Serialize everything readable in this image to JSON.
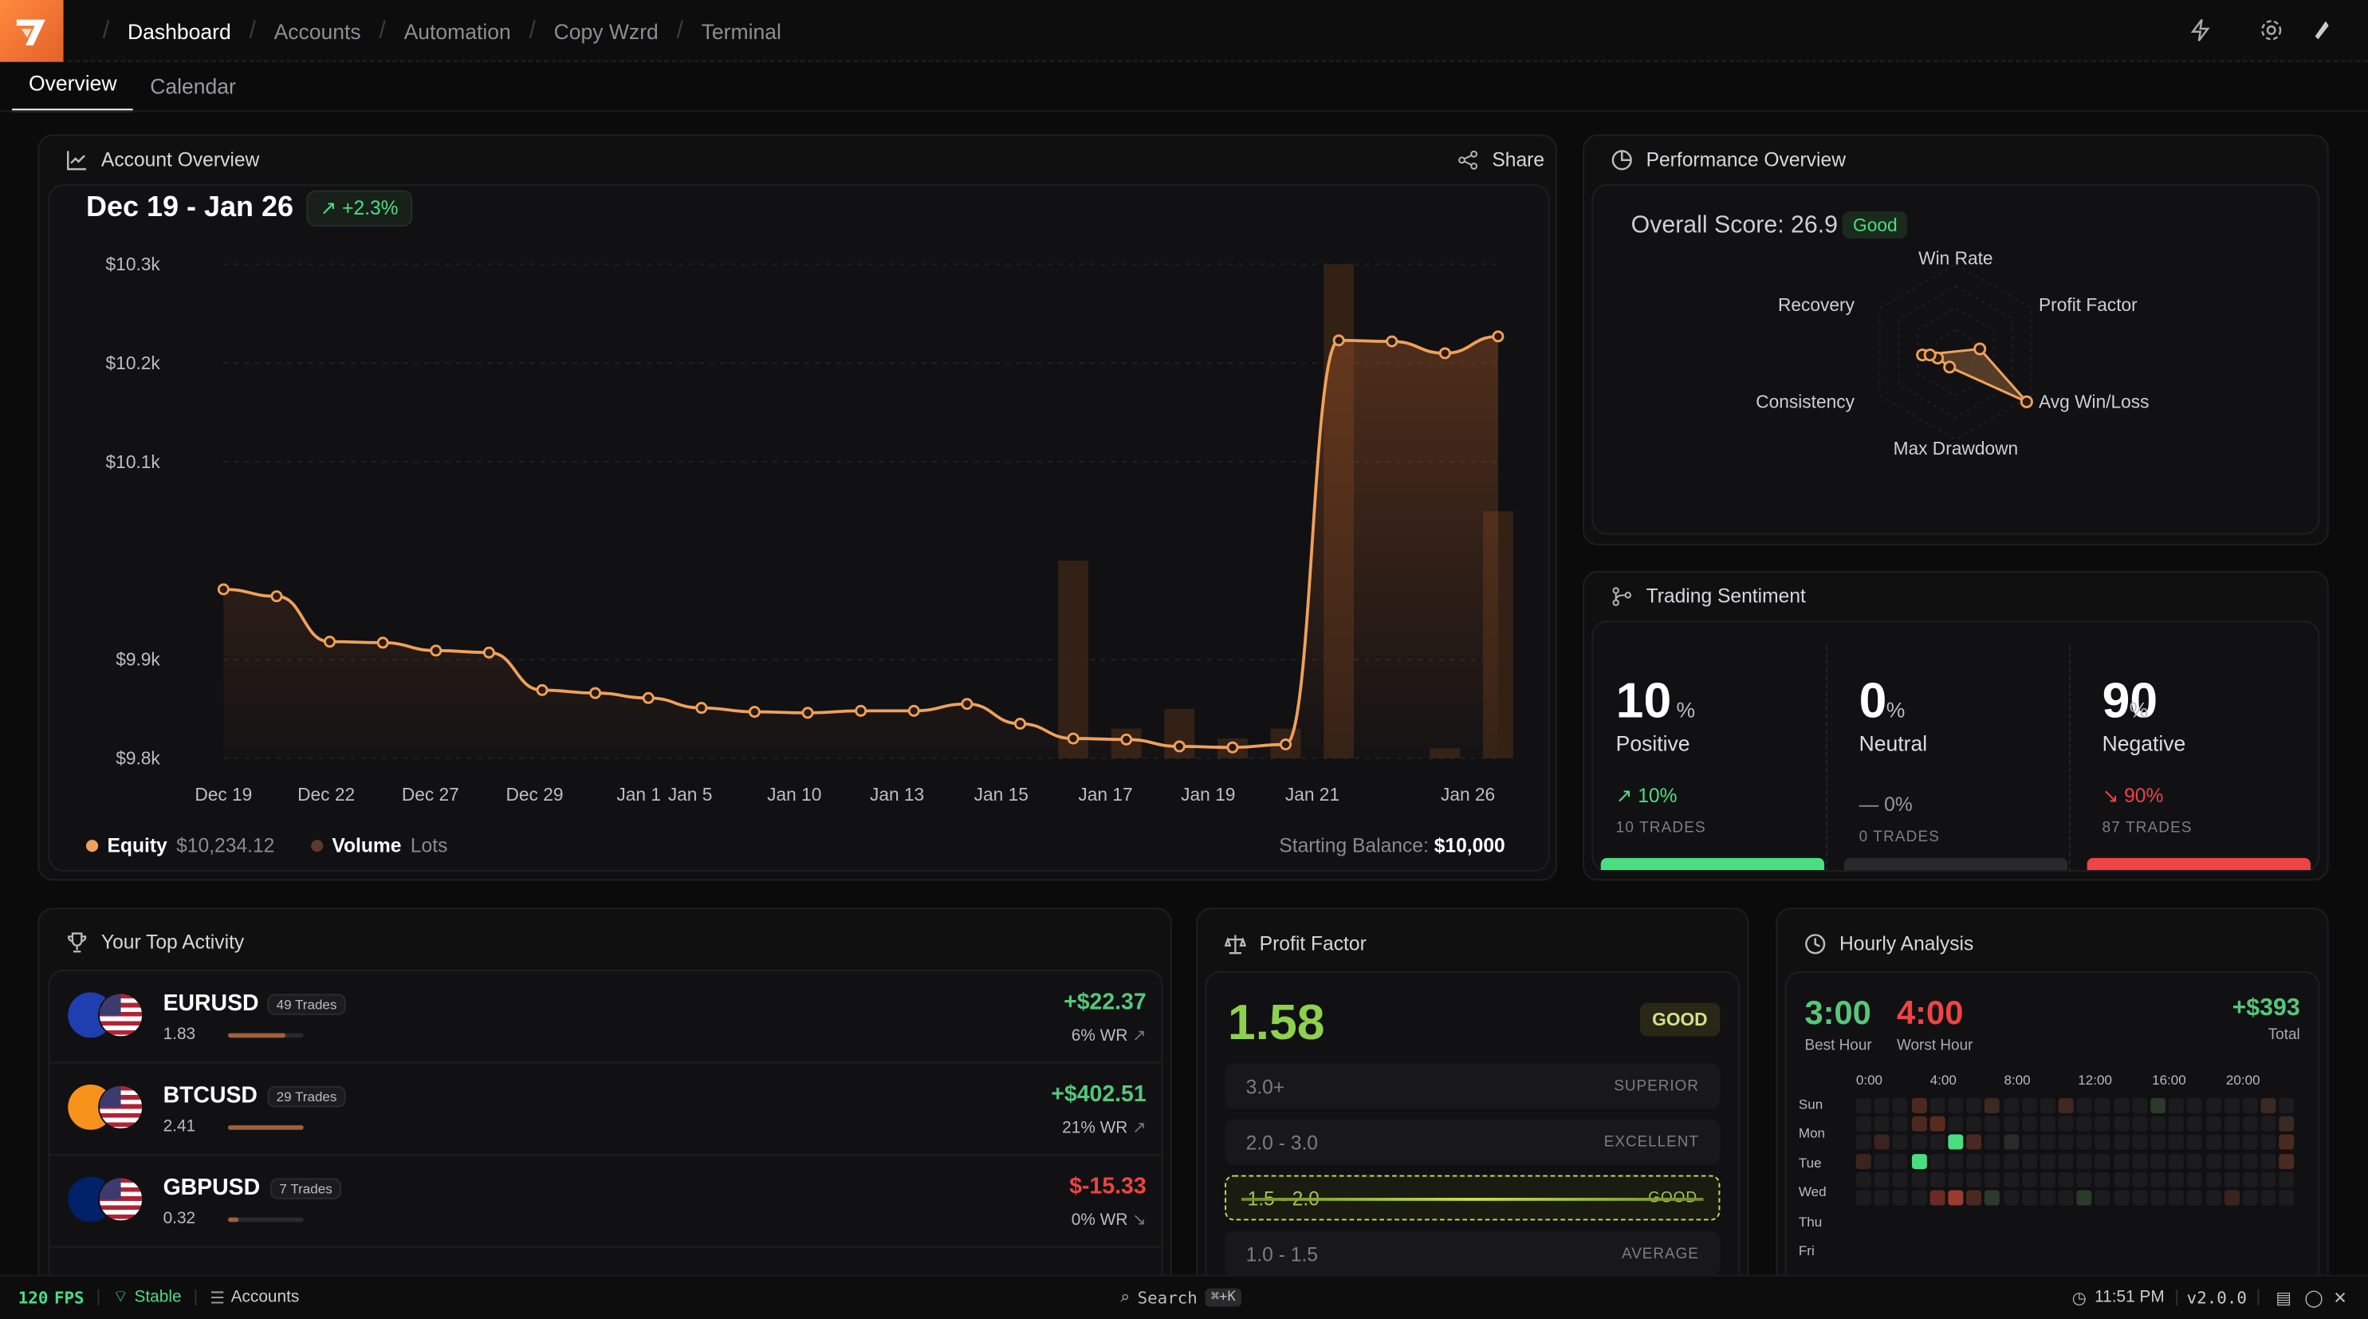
{
  "nav": {
    "crumbs": [
      "Dashboard",
      "Accounts",
      "Automation",
      "Copy Wzrd",
      "Terminal"
    ]
  },
  "tabs": [
    "Overview",
    "Calendar"
  ],
  "account_overview": {
    "title": "Account Overview",
    "share": "Share",
    "range": "Dec 19 - Jan 26",
    "change": "+2.3%",
    "legend": {
      "equity_label": "Equity",
      "equity_value": "$10,234.12",
      "volume_label": "Volume",
      "volume_unit": "Lots"
    },
    "starting_label": "Starting Balance:",
    "starting_value": "$10,000"
  },
  "chart_data": {
    "type": "line",
    "y_ticks": [
      "$10.3k",
      "$10.2k",
      "$10.1k",
      "$9.9k",
      "$9.8k"
    ],
    "x_ticks": [
      "Dec 19",
      "Dec 22",
      "Dec 27",
      "Dec 29",
      "Jan 1",
      "Jan 5",
      "Jan 10",
      "Jan 13",
      "Jan 15",
      "Jan 17",
      "Jan 19",
      "Jan 21",
      "Jan 26"
    ],
    "ylim": [
      9800,
      10300
    ],
    "series": [
      {
        "name": "Equity",
        "values": [
          9971,
          9964,
          9918,
          9917,
          9909,
          9907,
          9869,
          9866,
          9861,
          9851,
          9847,
          9846,
          9848,
          9848,
          9855,
          9835,
          9820,
          9819,
          9812,
          9811,
          9814,
          10223,
          10222,
          10210,
          10227
        ]
      },
      {
        "name": "Volume",
        "values": [
          0,
          0,
          0,
          0,
          0,
          0,
          0,
          0,
          0,
          0,
          0,
          0,
          0,
          0,
          0,
          0,
          0.4,
          0.06,
          0.1,
          0.04,
          0.06,
          1.0,
          0,
          0.02,
          0.5
        ]
      }
    ]
  },
  "perf": {
    "title": "Performance Overview",
    "score_label": "Overall Score: 26.9",
    "score_badge": "Good",
    "axes": [
      "Win Rate",
      "Profit Factor",
      "Avg Win/Loss",
      "Max Drawdown",
      "Consistency",
      "Recovery"
    ]
  },
  "sentiment": {
    "title": "Trading Sentiment",
    "items": [
      {
        "pct": "10",
        "unit": "%",
        "label": "Positive",
        "delta": "10%",
        "trades": "10 TRADES",
        "color": "#4ade80",
        "fill": 0.1
      },
      {
        "pct": "0",
        "unit": "%",
        "label": "Neutral",
        "delta": "0%",
        "trades": "0 TRADES",
        "color": "#777",
        "fill": 0
      },
      {
        "pct": "90",
        "unit": "%",
        "label": "Negative",
        "delta": "90%",
        "trades": "87 TRADES",
        "color": "#ef4444",
        "fill": 0.9
      }
    ]
  },
  "top_activity": {
    "title": "Your Top Activity",
    "rows": [
      {
        "sym": "EURUSD",
        "trades": "49 Trades",
        "pf": "1.83",
        "pnl": "+$22.37",
        "wr": "6% WR",
        "arrow": "↗",
        "pos": true,
        "pfbar": 0.75
      },
      {
        "sym": "BTCUSD",
        "trades": "29 Trades",
        "pf": "2.41",
        "pnl": "+$402.51",
        "wr": "21% WR",
        "arrow": "↗",
        "pos": true,
        "pfbar": 1.0
      },
      {
        "sym": "GBPUSD",
        "trades": "7 Trades",
        "pf": "0.32",
        "pnl": "$-15.33",
        "wr": "0% WR",
        "arrow": "↘",
        "pos": false,
        "pfbar": 0.13
      }
    ]
  },
  "profit_factor": {
    "title": "Profit Factor",
    "value": "1.58",
    "badge": "GOOD",
    "rows": [
      {
        "range": "3.0+",
        "label": "SUPERIOR"
      },
      {
        "range": "2.0 - 3.0",
        "label": "EXCELLENT"
      },
      {
        "range": "1.5 - 2.0",
        "label": "GOOD"
      },
      {
        "range": "1.0 - 1.5",
        "label": "AVERAGE"
      }
    ]
  },
  "hourly": {
    "title": "Hourly Analysis",
    "best": "3:00",
    "best_label": "Best Hour",
    "worst": "4:00",
    "worst_label": "Worst Hour",
    "total": "+$393",
    "total_label": "Total",
    "hours": [
      "0:00",
      "4:00",
      "8:00",
      "12:00",
      "16:00",
      "20:00"
    ],
    "days": [
      "Sun",
      "Mon",
      "Tue",
      "Wed",
      "Thu",
      "Fri"
    ]
  },
  "status": {
    "fps": "120",
    "fps_unit": "FPS",
    "conn": "Stable",
    "accounts": "Accounts",
    "search": "Search",
    "shortcut": "⌘+K",
    "time": "11:51 PM",
    "version": "v2.0.0"
  }
}
